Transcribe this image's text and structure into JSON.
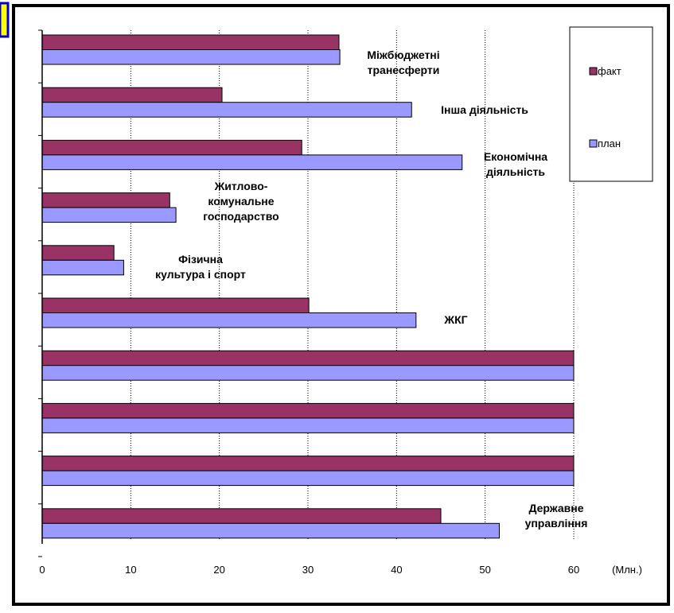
{
  "chart_data": {
    "type": "bar",
    "orientation": "horizontal",
    "categories": [
      "Міжбюджетні транесферти",
      "Інша діяльність",
      "Економічна діяльність",
      "Житлово-комунальне господарство",
      "Фізична культура і спорт",
      "ЖКГ",
      "",
      "",
      "",
      "Державне управління"
    ],
    "category_label_lines": [
      [
        "Міжбюджетні",
        "транесферти"
      ],
      [
        "Інша діяльність"
      ],
      [
        "Економічна",
        "діяльність"
      ],
      [
        "Житлово-",
        "комунальне",
        "господарство"
      ],
      [
        "Фізична",
        "культура і спорт"
      ],
      [
        "ЖКГ"
      ],
      [],
      [],
      [],
      [
        "Державне",
        "управління"
      ]
    ],
    "series": [
      {
        "name": "факт",
        "color": "#993366",
        "values": [
          33.5,
          20.3,
          29.3,
          14.4,
          8.1,
          30.1,
          60,
          60,
          60,
          45.0
        ]
      },
      {
        "name": "план",
        "color": "#9999ff",
        "values": [
          33.6,
          41.7,
          47.4,
          15.1,
          9.2,
          42.2,
          60,
          60,
          60,
          51.6
        ]
      }
    ],
    "xlim": [
      0,
      60
    ],
    "x_ticks": [
      0,
      10,
      20,
      30,
      40,
      50,
      60
    ],
    "x_tick_labels": [
      "0",
      "10",
      "20",
      "30",
      "40",
      "50",
      "60"
    ],
    "xlabel": "(Млн.)",
    "ylabel": "",
    "title": "",
    "grid": "vertical dotted",
    "legend_position": "top-right"
  },
  "colors": {
    "frame_border": "#000000",
    "accent_yellow": "#ffff00",
    "accent_blue": "#0000cc"
  }
}
